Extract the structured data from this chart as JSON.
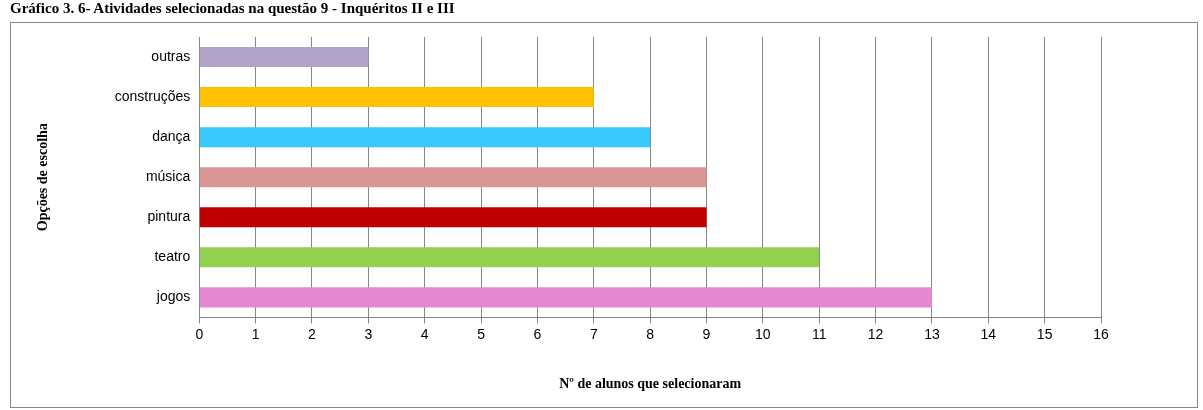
{
  "chart_data": {
    "type": "bar",
    "orientation": "horizontal",
    "title": "Gráfico 3. 6- Atividades selecionadas na questão 9 - Inquéritos II e III",
    "xlabel": "Nº de alunos que selecionaram",
    "ylabel": "Opções de escolha",
    "categories": [
      "outras",
      "construções",
      "dança",
      "música",
      "pintura",
      "teatro",
      "jogos"
    ],
    "values": [
      3,
      7,
      8,
      9,
      9,
      11,
      13
    ],
    "colors": [
      "#b3a2c7",
      "#ffc000",
      "#37c8fc",
      "#d99694",
      "#c00000",
      "#92d050",
      "#e687d2"
    ],
    "xlim": [
      0,
      16
    ],
    "xticks": [
      0,
      1,
      2,
      3,
      4,
      5,
      6,
      7,
      8,
      9,
      10,
      11,
      12,
      13,
      14,
      15,
      16
    ],
    "grid": "x",
    "legend": false
  }
}
